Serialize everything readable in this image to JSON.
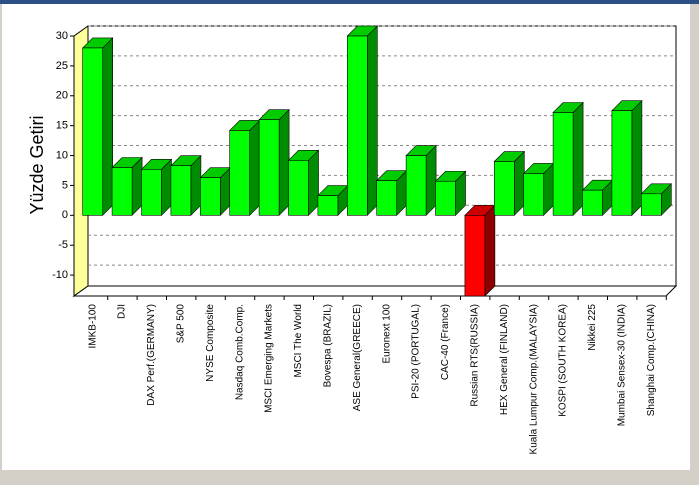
{
  "chart_data": {
    "type": "bar3d",
    "y_label": "Yüzde Getiri",
    "categories": [
      "IMKB-100",
      "DJI",
      "DAX Perf.(GERMANY)",
      "S&P 500",
      "NYSE Composite",
      "Nasdaq Comb.Comp.",
      "MSCI Emerging Markets",
      "MSCI The World",
      "Bovespa (BRAZIL)",
      "ASE General(GREECE)",
      "Euronext 100",
      "PSI-20 (PORTUGAL)",
      "CAC-40 (France)",
      "Russian RTS(RUSSIA)",
      "HEX General (FINLAND)",
      "Kuala Lumpur Comp.(MALAYSIA)",
      "KOSPI (SOUTH KOREA)",
      "Nikkei 225",
      "Mumbai Sensex-30 (INDIA)",
      "Shanghai Comp.(CHINA)"
    ],
    "values": [
      28,
      8,
      7.7,
      8.3,
      6.3,
      14.2,
      16,
      9.2,
      3.3,
      30,
      5.8,
      10,
      5.7,
      -13.5,
      9,
      7,
      17.2,
      4.2,
      17.5,
      3.6
    ],
    "color": "#00ff00",
    "negative_color": "#ff0000",
    "ylim": [
      -13.5,
      30
    ],
    "yticks": [
      -10,
      -5,
      0,
      5,
      10,
      15,
      20,
      25,
      30
    ],
    "grid": true
  }
}
